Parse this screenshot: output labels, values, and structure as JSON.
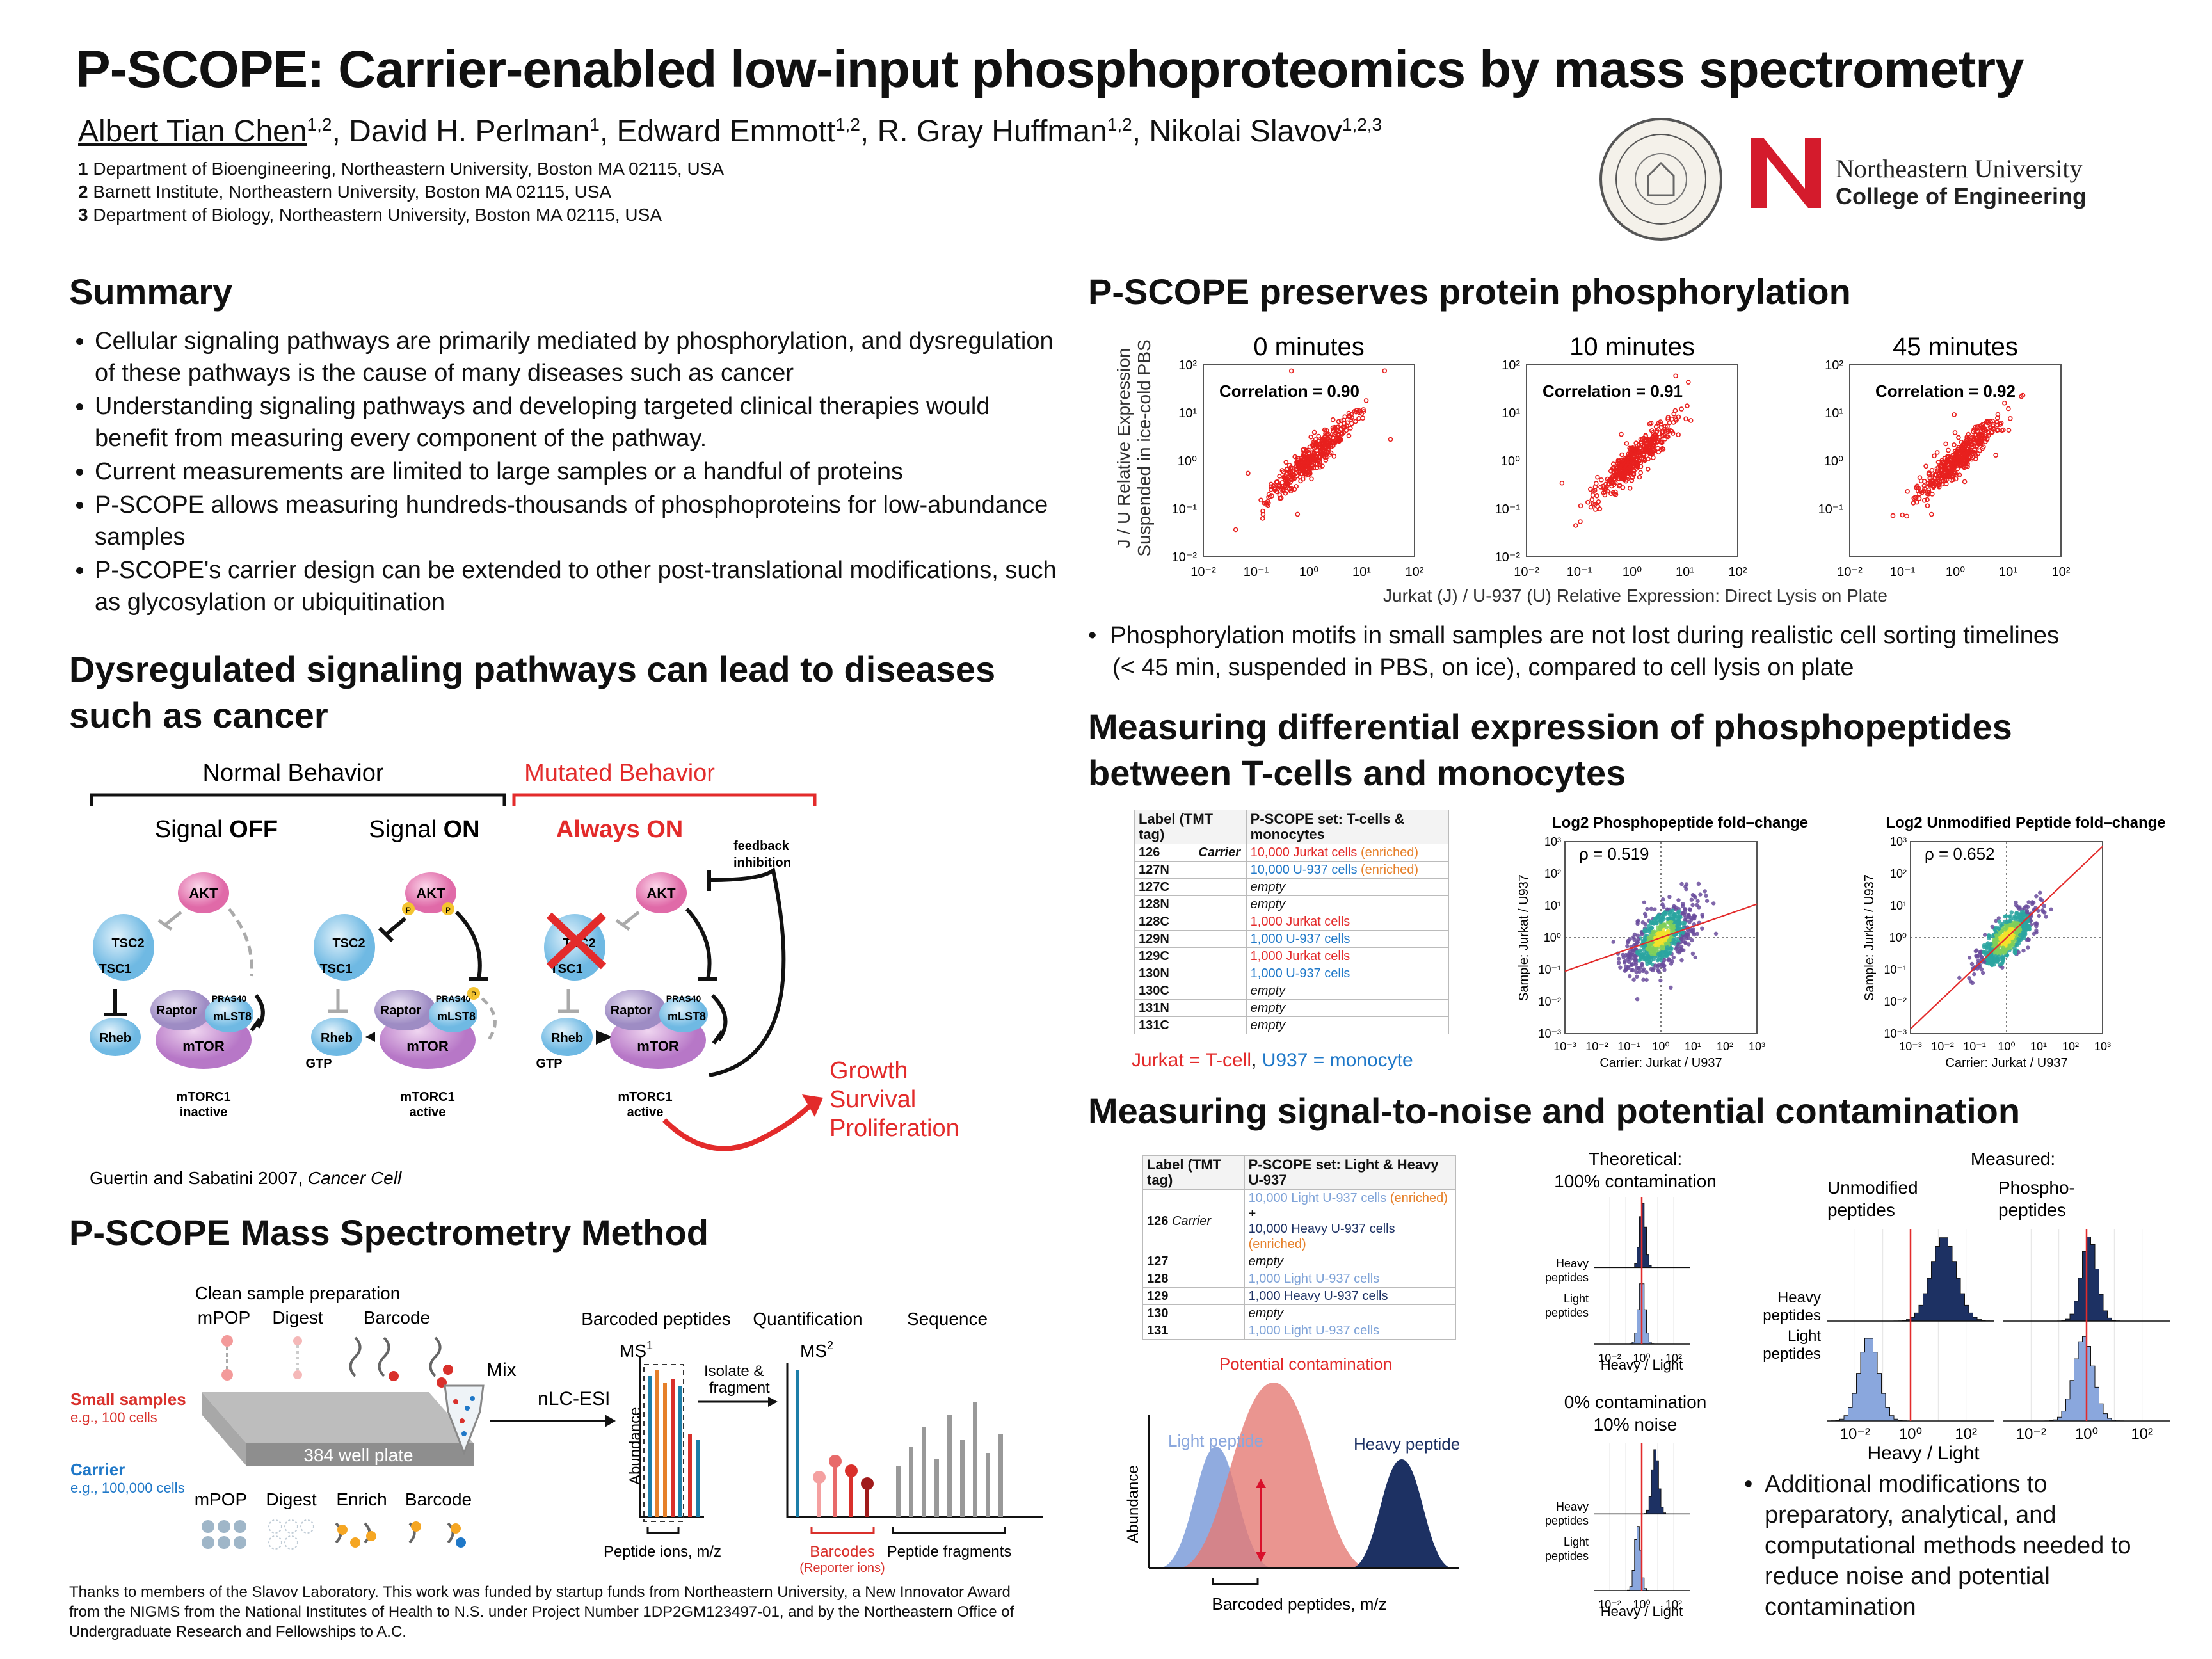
{
  "header": {
    "title": "P-SCOPE: Carrier-enabled low-input phosphoproteomics by mass spectrometry",
    "authors": [
      {
        "name": "Albert Tian Chen",
        "sup": "1,2"
      },
      {
        "name": "David H. Perlman",
        "sup": "1"
      },
      {
        "name": "Edward Emmott",
        "sup": "1,2"
      },
      {
        "name": "R. Gray Huffman",
        "sup": "1,2"
      },
      {
        "name": "Nikolai Slavov",
        "sup": "1,2,3"
      }
    ],
    "affiliations": [
      {
        "num": "1",
        "text": "Department of Bioengineering, Northeastern University, Boston MA 02115, USA"
      },
      {
        "num": "2",
        "text": "Barnett Institute, Northeastern University, Boston MA 02115, USA"
      },
      {
        "num": "3",
        "text": "Department of Biology, Northeastern University, Boston MA 02115, USA"
      }
    ],
    "logo_line1": "Northeastern University",
    "logo_line2": "College of Engineering"
  },
  "summary": {
    "heading": "Summary",
    "bullets": [
      "Cellular signaling pathways are primarily mediated by phosphorylation, and dysregulation of these pathways is the cause of many diseases such as cancer",
      "Understanding signaling pathways and developing targeted clinical therapies would benefit from measuring every component of the pathway.",
      "Current measurements are limited to large samples or a handful of proteins",
      "P-SCOPE allows measuring hundreds-thousands of phosphoproteins for low-abundance samples",
      "P-SCOPE's carrier design can be extended to other post-translational modifications, such as glycosylation or ubiquitination"
    ]
  },
  "pathways": {
    "heading": "Dysregulated signaling pathways can lead to diseases such as cancer",
    "normal": "Normal Behavior",
    "mutated": "Mutated Behavior",
    "signal_off_pre": "Signal ",
    "signal_off": "OFF",
    "signal_on_pre": "Signal ",
    "signal_on": "ON",
    "always_on": "Always ON",
    "feedback": "feedback inhibition",
    "akt": "AKT",
    "tsc2": "TSC2",
    "tsc1": "TSC1",
    "rheb": "Rheb",
    "gtp": "GTP",
    "raptor": "Raptor",
    "pras40": "PRAS40",
    "mlst8": "mLST8",
    "mtor": "mTOR",
    "p": "P",
    "state_inactive": "mTORC1 inactive",
    "state_active": "mTORC1 active",
    "outcomes": [
      "Growth",
      "Survival",
      "Proliferation"
    ],
    "citation_pre": "Guertin and Sabatini 2007, ",
    "citation_journal": "Cancer Cell"
  },
  "method": {
    "heading": "P-SCOPE Mass Spectrometry Method",
    "clean_prep": "Clean sample preparation",
    "top_steps": [
      "mPOP",
      "Digest",
      "Barcode"
    ],
    "bottom_steps": [
      "mPOP",
      "Digest",
      "Enrich",
      "Barcode"
    ],
    "small_samples": "Small samples",
    "small_eg": "e.g., 100 cells",
    "carrier": "Carrier",
    "carrier_eg": "e.g., 100,000 cells",
    "plate": "384 well plate",
    "mix": "Mix",
    "nlc": "nLC-ESI",
    "barcoded": "Barcoded peptides",
    "quant": "Quantification",
    "sequence": "Sequence",
    "ms1": "MS",
    "ms1_sup": "1",
    "ms2": "MS",
    "ms2_sup": "2",
    "isolate": "Isolate & fragment",
    "abundance": "Abundance",
    "peptide_ions": "Peptide ions, m/z",
    "barcodes": "Barcodes",
    "reporter": "(Reporter ions)",
    "fragments": "Peptide fragments"
  },
  "ack": "Thanks to members of the Slavov Laboratory. This work was funded by startup funds from Northeastern University, a New Innovator Award from the NIGMS from the National Institutes of Health to N.S. under Project Number 1DP2GM123497-01, and by the Northeastern Office of Undergraduate Research and Fellowships to A.C.",
  "preserves": {
    "heading": "P-SCOPE preserves protein phosphorylation",
    "ylabel1": "J / U Relative Expression",
    "ylabel2": "Suspended in ice-cold PBS",
    "xlabel": "Jurkat (J) / U-937 (U) Relative Expression: Direct Lysis on Plate",
    "bullet_line1": "Phosphorylation motifs in small samples are not lost during realistic cell sorting timelines",
    "bullet_line2": "(< 45 min, suspended in PBS, on ice), compared to cell lysis on plate"
  },
  "chart_data": [
    {
      "type": "scatter",
      "title": "0 minutes",
      "annotation": "Correlation = 0.90",
      "scale": "log",
      "xlim": [
        0.01,
        100
      ],
      "ylim": [
        0.01,
        100
      ],
      "xticks": [
        "10⁻²",
        "10⁻¹",
        "10⁰",
        "10¹",
        "10²"
      ],
      "yticks": [
        "10⁻²",
        "10⁻¹",
        "10⁰",
        "10¹",
        "10²"
      ],
      "color": "#e8201e"
    },
    {
      "type": "scatter",
      "title": "10 minutes",
      "annotation": "Correlation = 0.91",
      "scale": "log",
      "xlim": [
        0.01,
        100
      ],
      "ylim": [
        0.01,
        100
      ],
      "xticks": [
        "10⁻²",
        "10⁻¹",
        "10⁰",
        "10¹",
        "10²"
      ],
      "yticks": [
        "10⁻²",
        "10⁻¹",
        "10⁰",
        "10¹",
        "10²"
      ],
      "color": "#e8201e"
    },
    {
      "type": "scatter",
      "title": "45 minutes",
      "annotation": "Correlation = 0.92",
      "scale": "log",
      "xlim": [
        0.01,
        100
      ],
      "ylim": [
        0.01,
        100
      ],
      "xticks": [
        "10⁻²",
        "10⁻¹",
        "10⁰",
        "10¹",
        "10²"
      ],
      "yticks": [
        "10⁻¹",
        "10⁰",
        "10¹",
        "10²"
      ],
      "color": "#e8201e"
    },
    {
      "type": "scatter",
      "title": "Log2 Phosphopeptide fold–change",
      "annotation": "ρ = 0.519",
      "xlabel": "Carrier: Jurkat / U937",
      "ylabel": "Sample: Jurkat / U937",
      "scale": "log",
      "xlim": [
        0.001,
        1000
      ],
      "ylim": [
        0.001,
        1000
      ],
      "xticks": [
        "10⁻³",
        "10⁻²",
        "10⁻¹",
        "10⁰",
        "10¹",
        "10²",
        "10³"
      ],
      "yticks": [
        "10⁻³",
        "10⁻²",
        "10⁻¹",
        "10⁰",
        "10¹",
        "10²",
        "10³"
      ]
    },
    {
      "type": "scatter",
      "title": "Log2 Unmodified Peptide fold–change",
      "annotation": "ρ = 0.652",
      "xlabel": "Carrier: Jurkat / U937",
      "ylabel": "Sample: Jurkat / U937",
      "scale": "log",
      "xlim": [
        0.001,
        1000
      ],
      "ylim": [
        0.001,
        1000
      ],
      "xticks": [
        "10⁻³",
        "10⁻²",
        "10⁻¹",
        "10⁰",
        "10¹",
        "10²",
        "10³"
      ],
      "yticks": [
        "10⁻³",
        "10⁻²",
        "10⁻¹",
        "10⁰",
        "10¹",
        "10²",
        "10³"
      ]
    }
  ],
  "differential": {
    "heading_line1": "Measuring differential expression of phosphopeptides",
    "heading_line2": "between T-cells and monocytes",
    "table_h1": "Label (TMT tag)",
    "table_h2": "P-SCOPE set: T-cells & monocytes",
    "carrier_label": "Carrier",
    "rows": [
      {
        "tag": "126",
        "text": "10,000 Jurkat cells",
        "suffix": " (enriched)",
        "color": "red"
      },
      {
        "tag": "127N",
        "text": "10,000 U-937 cells",
        "suffix": " (enriched)",
        "color": "blue"
      },
      {
        "tag": "127C",
        "text": "empty",
        "suffix": "",
        "color": "empty"
      },
      {
        "tag": "128N",
        "text": "empty",
        "suffix": "",
        "color": "empty"
      },
      {
        "tag": "128C",
        "text": "1,000 Jurkat cells",
        "suffix": "",
        "color": "red"
      },
      {
        "tag": "129N",
        "text": "1,000 U-937 cells",
        "suffix": "",
        "color": "blue"
      },
      {
        "tag": "129C",
        "text": "1,000 Jurkat cells",
        "suffix": "",
        "color": "red"
      },
      {
        "tag": "130N",
        "text": "1,000 U-937 cells",
        "suffix": "",
        "color": "blue"
      },
      {
        "tag": "130C",
        "text": "empty",
        "suffix": "",
        "color": "empty"
      },
      {
        "tag": "131N",
        "text": "empty",
        "suffix": "",
        "color": "empty"
      },
      {
        "tag": "131C",
        "text": "empty",
        "suffix": "",
        "color": "empty"
      }
    ],
    "legend_red": "Jurkat = T-cell",
    "legend_sep": ", ",
    "legend_blue": "U937 = monocyte"
  },
  "s2n": {
    "heading": "Measuring signal-to-noise and potential contamination",
    "table_h1": "Label (TMT tag)",
    "table_h2": "P-SCOPE set: Light & Heavy U-937",
    "carrier_label": "Carrier",
    "row126_a": "10,000 Light U-937 cells",
    "row126_b": "10,000 Heavy U-937 cells",
    "enriched": " (enriched)",
    "plus": " +",
    "rows": [
      {
        "tag": "127",
        "text": "empty",
        "color": "empty"
      },
      {
        "tag": "128",
        "text": "1,000 Light U-937 cells",
        "color": "lblue"
      },
      {
        "tag": "129",
        "text": "1,000 Heavy U-937 cells",
        "color": "navy"
      },
      {
        "tag": "130",
        "text": "empty",
        "color": "empty"
      },
      {
        "tag": "131",
        "text": "1,000 Light U-937 cells",
        "color": "lblue"
      }
    ],
    "potential": "Potential contamination",
    "light_peptide": "Light peptide",
    "heavy_peptide": "Heavy peptide",
    "abundance": "Abundance",
    "barcoded_mz": "Barcoded peptides, m/z",
    "theoretical_1": "Theoretical:",
    "theoretical_2": "100% contamination",
    "zero_1": "0% contamination",
    "zero_2": "10% noise",
    "measured": "Measured:",
    "unmod_1": "Unmodified",
    "unmod_2": "peptides",
    "phos_1": "Phospho-",
    "phos_2": "peptides",
    "heavy_lbl": "Heavy",
    "light_lbl": "Light",
    "peptides_lbl": "peptides",
    "hl_xlabel": "Heavy / Light",
    "hticks_small": [
      "10⁻²",
      "10⁰",
      "10²"
    ],
    "hticks_big": [
      "10⁻²",
      "10⁰",
      "10²"
    ],
    "bullet": "Additional modifications to preparatory, analytical, and computational methods needed to reduce noise and potential contamination"
  }
}
